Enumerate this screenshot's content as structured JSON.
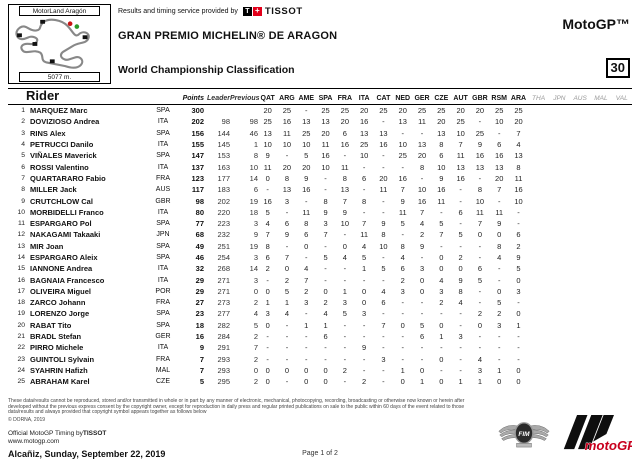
{
  "header": {
    "track_name": "MotorLand Aragón",
    "track_length": "5077 m.",
    "provided_by": "Results and timing service provided by",
    "tissot_t": "T",
    "tissot_cross": "+",
    "tissot_brand": "TISSOT",
    "event_title": "GRAN PREMIO MICHELIN® DE ARAGON",
    "report_title": "World Championship Classification",
    "class_label": "MotoGP™",
    "page_code": "30"
  },
  "table": {
    "columns": {
      "rider": "Rider",
      "points": "Points",
      "leader": "Leader",
      "previous": "Previous"
    },
    "races": [
      "QAT",
      "ARG",
      "AME",
      "SPA",
      "FRA",
      "ITA",
      "CAT",
      "NED",
      "GER",
      "CZE",
      "AUT",
      "GBR",
      "RSM",
      "ARA"
    ],
    "future_races": [
      "THA",
      "JPN",
      "AUS",
      "MAL",
      "VAL"
    ],
    "rows": [
      {
        "pos": "1",
        "rider": "MARQUEZ Marc",
        "nation": "SPA",
        "points": "300",
        "leader": "",
        "previous": "",
        "results": [
          "20",
          "25",
          "-",
          "25",
          "25",
          "20",
          "25",
          "20",
          "25",
          "25",
          "20",
          "20",
          "25",
          "25"
        ]
      },
      {
        "pos": "2",
        "rider": "DOVIZIOSO Andrea",
        "nation": "ITA",
        "points": "202",
        "leader": "98",
        "previous": "98",
        "results": [
          "25",
          "16",
          "13",
          "13",
          "20",
          "16",
          "-",
          "13",
          "11",
          "20",
          "25",
          "-",
          "10",
          "20"
        ]
      },
      {
        "pos": "3",
        "rider": "RINS Alex",
        "nation": "SPA",
        "points": "156",
        "leader": "144",
        "previous": "46",
        "results": [
          "13",
          "11",
          "25",
          "20",
          "6",
          "13",
          "13",
          "-",
          "-",
          "13",
          "10",
          "25",
          "-",
          "7"
        ]
      },
      {
        "pos": "4",
        "rider": "PETRUCCI Danilo",
        "nation": "ITA",
        "points": "155",
        "leader": "145",
        "previous": "1",
        "results": [
          "10",
          "10",
          "10",
          "11",
          "16",
          "25",
          "16",
          "10",
          "13",
          "8",
          "7",
          "9",
          "6",
          "4"
        ]
      },
      {
        "pos": "5",
        "rider": "VIÑALES Maverick",
        "nation": "SPA",
        "points": "147",
        "leader": "153",
        "previous": "8",
        "results": [
          "9",
          "-",
          "5",
          "16",
          "-",
          "10",
          "-",
          "25",
          "20",
          "6",
          "11",
          "16",
          "16",
          "13"
        ]
      },
      {
        "pos": "6",
        "rider": "ROSSI Valentino",
        "nation": "ITA",
        "points": "137",
        "leader": "163",
        "previous": "10",
        "results": [
          "11",
          "20",
          "20",
          "10",
          "11",
          "-",
          "-",
          "-",
          "8",
          "10",
          "13",
          "13",
          "13",
          "8"
        ]
      },
      {
        "pos": "7",
        "rider": "QUARTARARO Fabio",
        "nation": "FRA",
        "points": "123",
        "leader": "177",
        "previous": "14",
        "results": [
          "0",
          "8",
          "9",
          "-",
          "8",
          "6",
          "20",
          "16",
          "-",
          "9",
          "16",
          "-",
          "20",
          "11"
        ]
      },
      {
        "pos": "8",
        "rider": "MILLER Jack",
        "nation": "AUS",
        "points": "117",
        "leader": "183",
        "previous": "6",
        "results": [
          "-",
          "13",
          "16",
          "-",
          "13",
          "-",
          "11",
          "7",
          "10",
          "16",
          "-",
          "8",
          "7",
          "16"
        ]
      },
      {
        "pos": "9",
        "rider": "CRUTCHLOW Cal",
        "nation": "GBR",
        "points": "98",
        "leader": "202",
        "previous": "19",
        "results": [
          "16",
          "3",
          "-",
          "8",
          "7",
          "8",
          "-",
          "9",
          "16",
          "11",
          "-",
          "10",
          "-",
          "10"
        ]
      },
      {
        "pos": "10",
        "rider": "MORBIDELLI Franco",
        "nation": "ITA",
        "points": "80",
        "leader": "220",
        "previous": "18",
        "results": [
          "5",
          "-",
          "11",
          "9",
          "9",
          "-",
          "-",
          "11",
          "7",
          "-",
          "6",
          "11",
          "11",
          "-"
        ]
      },
      {
        "pos": "11",
        "rider": "ESPARGARO Pol",
        "nation": "SPA",
        "points": "77",
        "leader": "223",
        "previous": "3",
        "results": [
          "4",
          "6",
          "8",
          "3",
          "10",
          "7",
          "9",
          "5",
          "4",
          "5",
          "-",
          "7",
          "9",
          "-"
        ]
      },
      {
        "pos": "12",
        "rider": "NAKAGAMI Takaaki",
        "nation": "JPN",
        "points": "68",
        "leader": "232",
        "previous": "9",
        "results": [
          "7",
          "9",
          "6",
          "7",
          "-",
          "11",
          "8",
          "-",
          "2",
          "7",
          "5",
          "0",
          "0",
          "6"
        ]
      },
      {
        "pos": "13",
        "rider": "MIR Joan",
        "nation": "SPA",
        "points": "49",
        "leader": "251",
        "previous": "19",
        "results": [
          "8",
          "-",
          "0",
          "-",
          "0",
          "4",
          "10",
          "8",
          "9",
          "-",
          "-",
          "-",
          "8",
          "2"
        ]
      },
      {
        "pos": "14",
        "rider": "ESPARGARO Aleix",
        "nation": "SPA",
        "points": "46",
        "leader": "254",
        "previous": "3",
        "results": [
          "6",
          "7",
          "-",
          "5",
          "4",
          "5",
          "-",
          "4",
          "-",
          "0",
          "2",
          "-",
          "4",
          "9"
        ]
      },
      {
        "pos": "15",
        "rider": "IANNONE Andrea",
        "nation": "ITA",
        "points": "32",
        "leader": "268",
        "previous": "14",
        "results": [
          "2",
          "0",
          "4",
          "-",
          "-",
          "1",
          "5",
          "6",
          "3",
          "0",
          "0",
          "6",
          "-",
          "5"
        ]
      },
      {
        "pos": "16",
        "rider": "BAGNAIA Francesco",
        "nation": "ITA",
        "points": "29",
        "leader": "271",
        "previous": "3",
        "results": [
          "-",
          "2",
          "7",
          "-",
          "-",
          "-",
          "-",
          "2",
          "0",
          "4",
          "9",
          "5",
          "-",
          "0"
        ]
      },
      {
        "pos": "17",
        "rider": "OLIVEIRA Miguel",
        "nation": "POR",
        "points": "29",
        "leader": "271",
        "previous": "0",
        "results": [
          "0",
          "5",
          "2",
          "0",
          "1",
          "0",
          "4",
          "3",
          "0",
          "3",
          "8",
          "-",
          "0",
          "3"
        ]
      },
      {
        "pos": "18",
        "rider": "ZARCO Johann",
        "nation": "FRA",
        "points": "27",
        "leader": "273",
        "previous": "2",
        "results": [
          "1",
          "1",
          "3",
          "2",
          "3",
          "0",
          "6",
          "-",
          "-",
          "2",
          "4",
          "-",
          "5",
          "-"
        ]
      },
      {
        "pos": "19",
        "rider": "LORENZO Jorge",
        "nation": "SPA",
        "points": "23",
        "leader": "277",
        "previous": "4",
        "results": [
          "3",
          "4",
          "-",
          "4",
          "5",
          "3",
          "-",
          "-",
          "-",
          "-",
          "-",
          "2",
          "2",
          "0"
        ]
      },
      {
        "pos": "20",
        "rider": "RABAT Tito",
        "nation": "SPA",
        "points": "18",
        "leader": "282",
        "previous": "5",
        "results": [
          "0",
          "-",
          "1",
          "1",
          "-",
          "-",
          "7",
          "0",
          "5",
          "0",
          "-",
          "0",
          "3",
          "1"
        ]
      },
      {
        "pos": "21",
        "rider": "BRADL Stefan",
        "nation": "GER",
        "points": "16",
        "leader": "284",
        "previous": "2",
        "results": [
          "-",
          "-",
          "-",
          "6",
          "-",
          "-",
          "-",
          "-",
          "6",
          "1",
          "3",
          "-",
          "-",
          "-"
        ]
      },
      {
        "pos": "22",
        "rider": "PIRRO Michele",
        "nation": "ITA",
        "points": "9",
        "leader": "291",
        "previous": "7",
        "results": [
          "-",
          "-",
          "-",
          "-",
          "-",
          "9",
          "-",
          "-",
          "-",
          "-",
          "-",
          "-",
          "-",
          "-"
        ]
      },
      {
        "pos": "23",
        "rider": "GUINTOLI Sylvain",
        "nation": "FRA",
        "points": "7",
        "leader": "293",
        "previous": "2",
        "results": [
          "-",
          "-",
          "-",
          "-",
          "-",
          "-",
          "3",
          "-",
          "-",
          "0",
          "-",
          "4",
          "-",
          "-"
        ]
      },
      {
        "pos": "24",
        "rider": "SYAHRIN Hafizh",
        "nation": "MAL",
        "points": "7",
        "leader": "293",
        "previous": "0",
        "results": [
          "0",
          "0",
          "0",
          "0",
          "2",
          "-",
          "-",
          "1",
          "0",
          "-",
          "-",
          "3",
          "1",
          "0"
        ]
      },
      {
        "pos": "25",
        "rider": "ABRAHAM Karel",
        "nation": "CZE",
        "points": "5",
        "leader": "295",
        "previous": "2",
        "results": [
          "0",
          "-",
          "0",
          "0",
          "-",
          "2",
          "-",
          "0",
          "1",
          "0",
          "1",
          "1",
          "0",
          "0"
        ]
      }
    ]
  },
  "footer": {
    "disclaimer_line1": "These data/results cannot be reproduced, stored and/or transmitted in whole or in part by any manner of electronic, mechanical, photocopying, recording, broadcasting or otherwise now known or herein after developed without the previous express consent by the",
    "disclaimer_line2": "copyright owner, except for reproduction in daily press and regular printed publications on sale to the public within 60 days of the event related to those data/results and always provided that copyright symbol appears together as follows below",
    "copyright": "© DORNA, 2019",
    "timing_prefix": "Official MotoGP Timing by",
    "timing_brand": "TISSOT",
    "website": "www.motogp.com",
    "location_date": "Alcañiz, Sunday, September 22, 2019",
    "page_number": "Page 1 of 2",
    "fim_logo_text": "FIM",
    "motogp_logo_text": "motoGP"
  }
}
